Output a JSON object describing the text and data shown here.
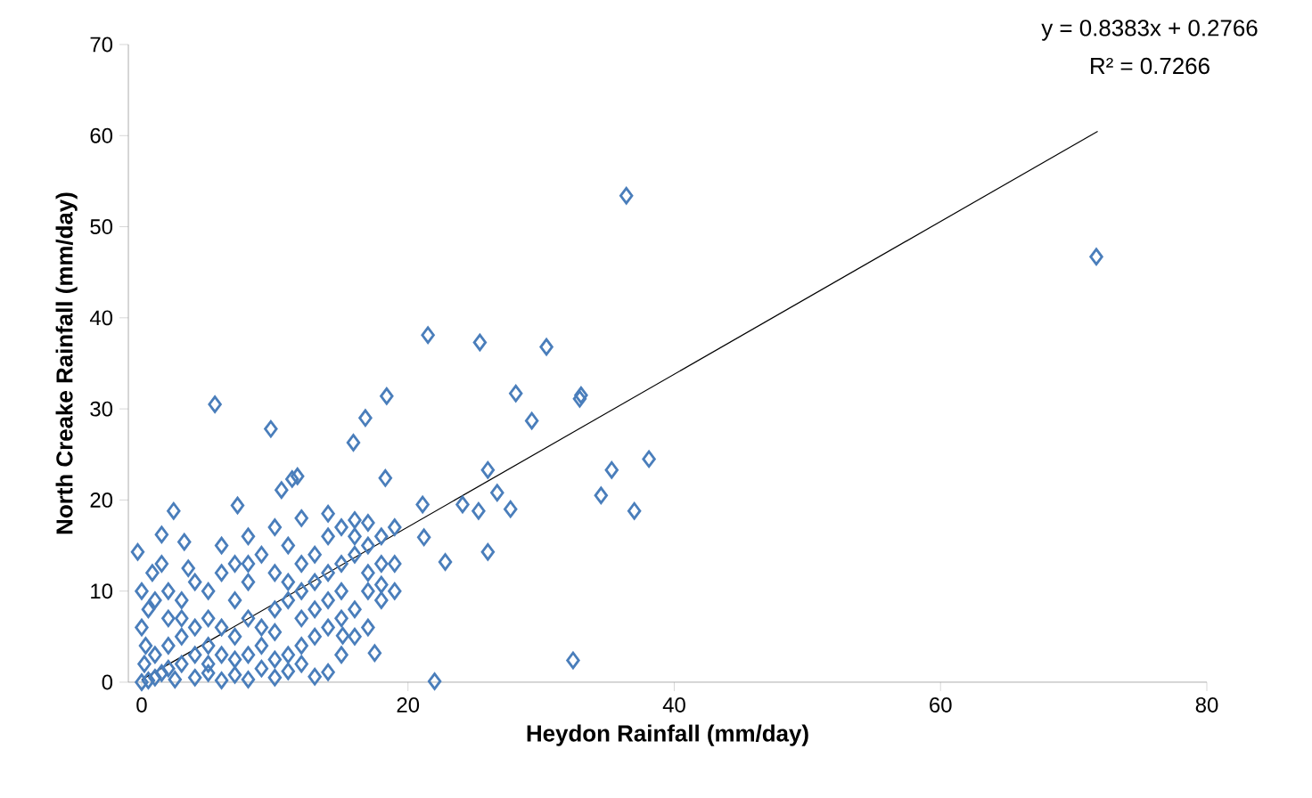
{
  "chart_data": {
    "type": "scatter",
    "xlabel": "Heydon Rainfall (mm/day)",
    "ylabel": "North Creake Rainfall (mm/day)",
    "xlim": [
      -1,
      80
    ],
    "ylim": [
      0,
      70
    ],
    "xticks": [
      0,
      20,
      40,
      60,
      80
    ],
    "yticks": [
      0,
      10,
      20,
      30,
      40,
      50,
      60,
      70
    ],
    "marker": "diamond",
    "annotations": [
      "y = 0.8383x + 0.2766",
      "R² = 0.7266"
    ],
    "series": [
      {
        "color": "#4a7ebb",
        "x": [
          36.4,
          71.7,
          21.5,
          25.4,
          30.4,
          28.1,
          33.0,
          32.9,
          29.3,
          5.5,
          9.7,
          18.4,
          16.8,
          15.9,
          38.1,
          35.3,
          34.5,
          37.0,
          26.0,
          26.7,
          27.7,
          25.3,
          24.1,
          22.8,
          26.0,
          32.4,
          22.0,
          18.3,
          21.1,
          21.2,
          11.3,
          11.7,
          10.5,
          2.4,
          7.2,
          -0.3,
          1.5,
          3.2,
          14.0,
          17.5,
          18.0,
          15.1,
          0,
          0.5,
          1,
          1.5,
          2,
          0.2,
          0.3,
          0,
          0.5,
          0,
          0.8,
          1,
          2,
          3,
          2.5,
          4,
          5,
          6,
          7,
          8,
          9,
          10,
          11,
          12,
          13,
          3,
          4,
          5,
          6,
          7,
          8,
          9,
          10,
          11,
          12,
          13,
          14,
          15,
          16,
          17,
          18,
          19,
          2,
          3,
          4,
          5,
          6,
          7,
          8,
          9,
          10,
          11,
          12,
          13,
          14,
          15,
          16,
          17,
          18,
          17,
          16,
          15,
          14,
          13,
          12,
          11,
          10,
          9,
          8,
          7,
          6,
          5,
          4,
          3,
          2,
          1,
          1.5,
          3.5,
          6,
          8,
          10,
          12,
          14,
          16,
          19,
          18,
          16,
          15,
          17,
          12,
          10,
          7,
          5,
          8,
          11,
          13,
          14,
          15,
          17,
          19
        ],
        "values": [
          53.4,
          46.7,
          38.1,
          37.3,
          36.8,
          31.7,
          31.5,
          31.1,
          28.7,
          30.5,
          27.8,
          31.4,
          29.0,
          26.3,
          24.5,
          23.3,
          20.5,
          18.8,
          23.3,
          20.8,
          19.0,
          18.8,
          19.5,
          13.2,
          14.3,
          2.4,
          0.1,
          22.4,
          19.5,
          15.9,
          22.3,
          22.6,
          21.1,
          18.8,
          19.4,
          14.3,
          16.2,
          15.4,
          1.1,
          3.2,
          10.7,
          5.1,
          0,
          0.2,
          0.5,
          1,
          1.5,
          2,
          4,
          6,
          8,
          10,
          12,
          3,
          4,
          2,
          0.3,
          0.5,
          1,
          0.2,
          0.8,
          0.3,
          1.5,
          0.5,
          1.2,
          2,
          0.6,
          5,
          3,
          4,
          6,
          5,
          7,
          6,
          8,
          9,
          10,
          11,
          12,
          13,
          14,
          15,
          16,
          17,
          7,
          9,
          11,
          10,
          12,
          13,
          11,
          14,
          12,
          15,
          13,
          14,
          16,
          17,
          16,
          17.5,
          13,
          10,
          8,
          7,
          6,
          5,
          4,
          3,
          2.5,
          4,
          3,
          2.5,
          3,
          2,
          6,
          7,
          10,
          9,
          13,
          12.5,
          15,
          16,
          17,
          18,
          18.5,
          17.8,
          13,
          9,
          5,
          3,
          6,
          7,
          5.5,
          9,
          7,
          13,
          11,
          8,
          9,
          10,
          12,
          10
        ]
      },
      {
        "type": "line",
        "color": "#000000",
        "marker": "none",
        "x": [
          0,
          71.8
        ],
        "values": [
          0.2766,
          60.466
        ]
      }
    ]
  }
}
